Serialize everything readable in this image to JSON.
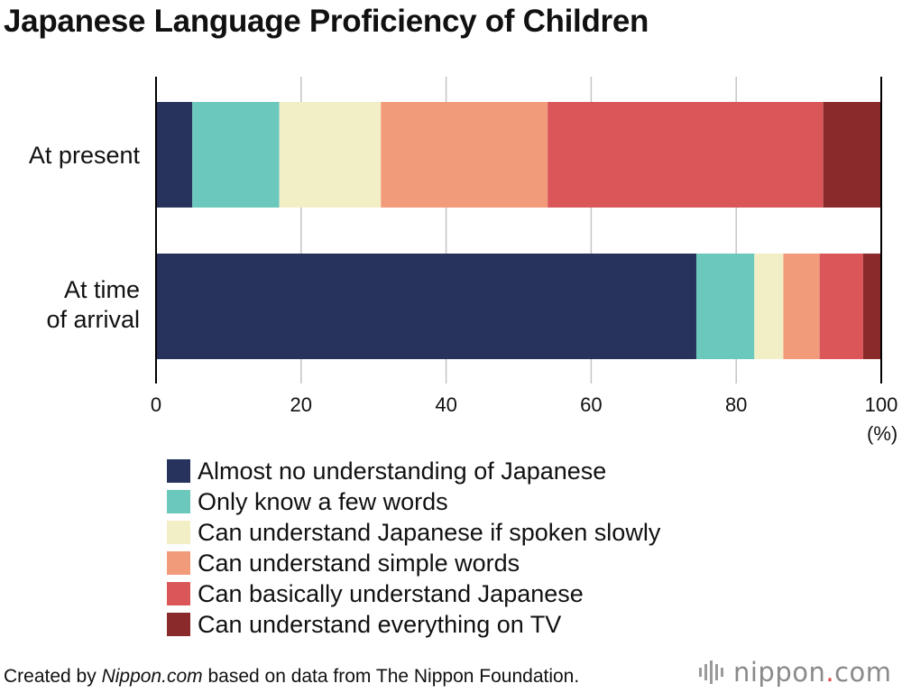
{
  "title": "Japanese Language Proficiency of Children",
  "chart_data": {
    "type": "bar",
    "orientation": "horizontal",
    "stacked": true,
    "title": "Japanese Language Proficiency of Children",
    "categories": [
      "At present",
      "At time of arrival"
    ],
    "category_lines": [
      [
        "At present"
      ],
      [
        "At time",
        "of arrival"
      ]
    ],
    "series": [
      {
        "name": "Almost no understanding of Japanese",
        "color": "#27335c",
        "values": [
          5,
          74.5
        ]
      },
      {
        "name": "Only know a few words",
        "color": "#6bc8bc",
        "values": [
          12,
          8
        ]
      },
      {
        "name": "Can understand Japanese if spoken slowly",
        "color": "#f2efc7",
        "values": [
          14,
          4
        ]
      },
      {
        "name": "Can understand simple words",
        "color": "#f29b7a",
        "values": [
          23,
          5
        ]
      },
      {
        "name": "Can basically understand Japanese",
        "color": "#da5659",
        "values": [
          38,
          6
        ]
      },
      {
        "name": "Can understand everything on TV",
        "color": "#8b2a2a",
        "values": [
          8,
          2.5
        ]
      }
    ],
    "x_ticks": [
      "0",
      "20",
      "40",
      "60",
      "80",
      "100"
    ],
    "xlim": [
      0,
      100
    ],
    "x_unit": "(%)",
    "grid": true,
    "legend_position": "bottom"
  },
  "footer": {
    "prefix": "Created by ",
    "source_name": "Nippon.com",
    "suffix": " based on data from The Nippon Foundation."
  },
  "logo": {
    "text_main": "nippon",
    "text_dot": ".",
    "text_end": "com"
  }
}
